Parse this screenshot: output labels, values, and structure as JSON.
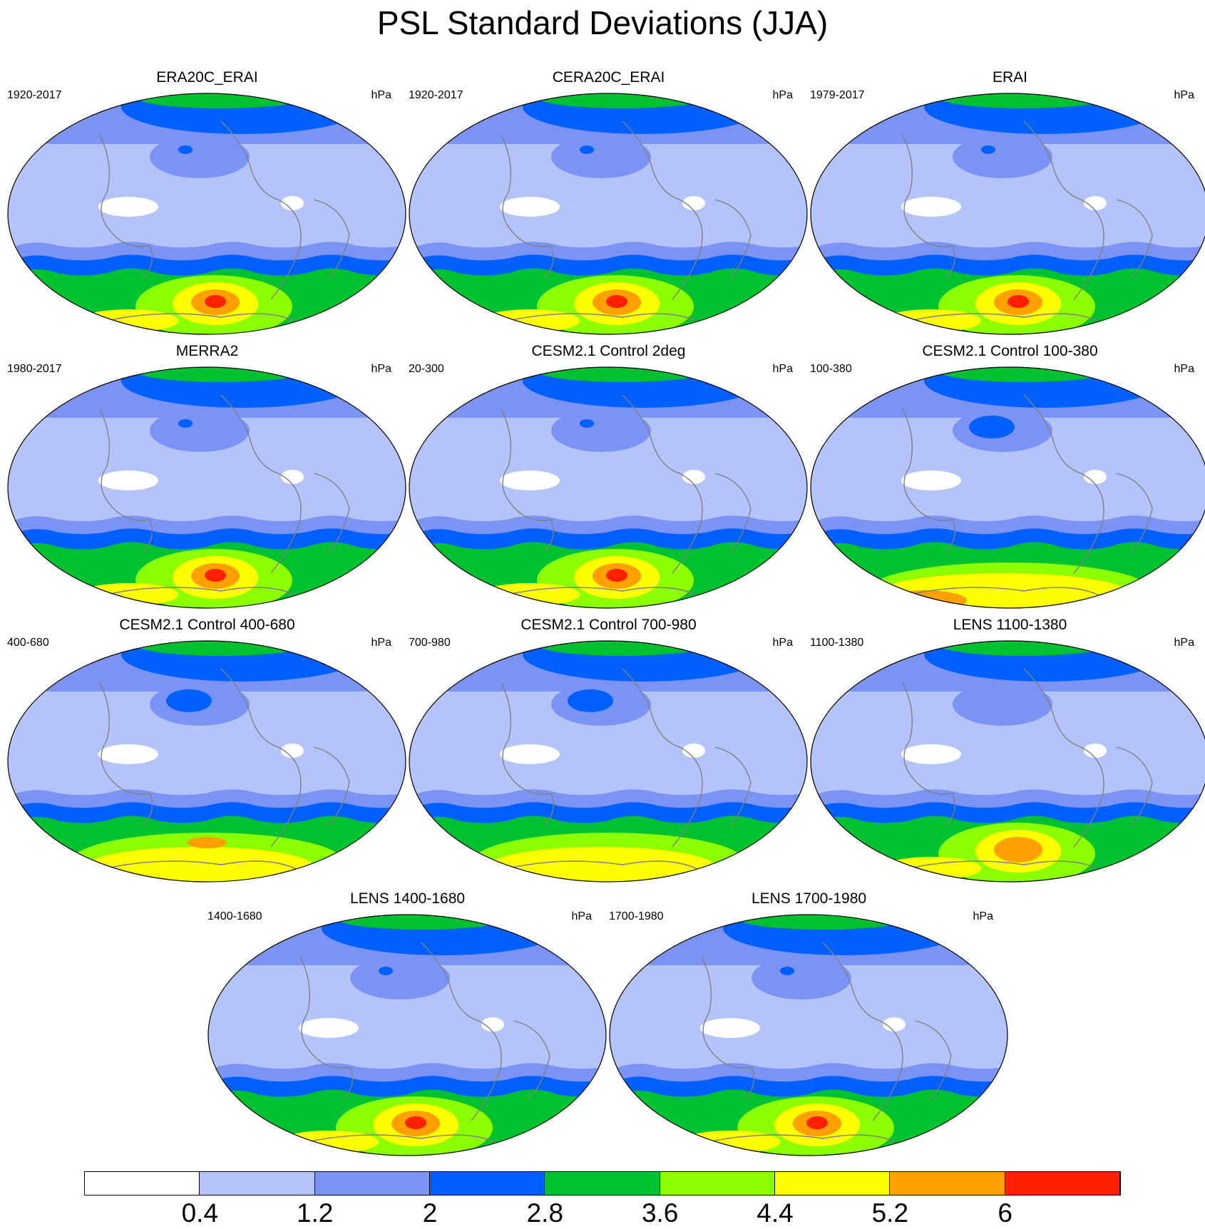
{
  "title": "PSL Standard Deviations (JJA)",
  "units": "hPa",
  "panels": [
    {
      "title": "ERA20C_ERAI",
      "period": "1920-2017",
      "units": "hPa",
      "max_level": 8,
      "feature": "ross-core"
    },
    {
      "title": "CERA20C_ERAI",
      "period": "1920-2017",
      "units": "hPa",
      "max_level": 8,
      "feature": "ross-core"
    },
    {
      "title": "ERAI",
      "period": "1979-2017",
      "units": "hPa",
      "max_level": 8,
      "feature": "ross-core"
    },
    {
      "title": "MERRA2",
      "period": "1980-2017",
      "units": "hPa",
      "max_level": 8,
      "feature": "ross-core"
    },
    {
      "title": "CESM2.1 Control 2deg",
      "period": "20-300",
      "units": "hPa",
      "max_level": 8,
      "feature": "ross-core"
    },
    {
      "title": "CESM2.1 Control 100-380",
      "period": "100-380",
      "units": "hPa",
      "max_level": 7,
      "feature": "antarctic-broad"
    },
    {
      "title": "CESM2.1 Control 400-680",
      "period": "400-680",
      "units": "hPa",
      "max_level": 7,
      "feature": "pacific-broad"
    },
    {
      "title": "CESM2.1 Control 700-980",
      "period": "700-980",
      "units": "hPa",
      "max_level": 6,
      "feature": "pacific-broad"
    },
    {
      "title": "LENS 1100-1380",
      "period": "1100-1380",
      "units": "hPa",
      "max_level": 7,
      "feature": "ross-core"
    },
    {
      "title": "LENS 1400-1680",
      "period": "1400-1680",
      "units": "hPa",
      "max_level": 8,
      "feature": "ross-core"
    },
    {
      "title": "LENS 1700-1980",
      "period": "1700-1980",
      "units": "hPa",
      "max_level": 8,
      "feature": "ross-core"
    }
  ],
  "colorbar": {
    "colors": [
      "#ffffff",
      "#b4c4fa",
      "#7b93f5",
      "#0060ff",
      "#00c130",
      "#8cff00",
      "#ffff00",
      "#ffa000",
      "#ff2000"
    ],
    "labels": [
      "0.4",
      "1.2",
      "2",
      "2.8",
      "3.6",
      "4.4",
      "5.2",
      "6"
    ]
  }
}
